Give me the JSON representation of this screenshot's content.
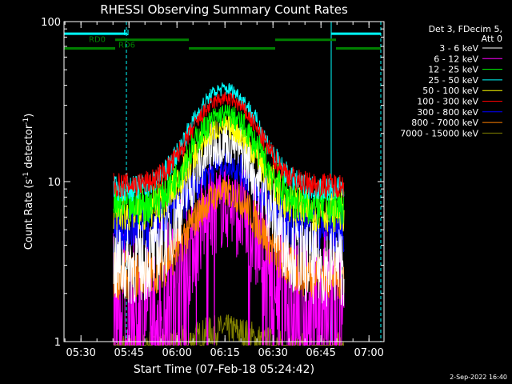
{
  "chart_data": {
    "type": "line",
    "title": "RHESSI Observing Summary Count Rates",
    "xlabel": "Start Time (07-Feb-18 05:24:42)",
    "ylabel_main": "Count Rate (s",
    "ylabel_sup1": "-1",
    "ylabel_mid": " detector",
    "ylabel_sup2": "-1",
    "ylabel_end": ")",
    "y_scale": "log",
    "ylim": [
      1,
      100
    ],
    "xlim_minutes": [
      0,
      100
    ],
    "x_ticks": [
      {
        "label": "05:30",
        "minute": 5.3
      },
      {
        "label": "05:45",
        "minute": 20.3
      },
      {
        "label": "06:00",
        "minute": 35.3
      },
      {
        "label": "06:15",
        "minute": 50.3
      },
      {
        "label": "06:30",
        "minute": 65.3
      },
      {
        "label": "06:45",
        "minute": 80.3
      },
      {
        "label": "07:00",
        "minute": 95.3
      }
    ],
    "y_ticks": [
      {
        "label": "1",
        "value": 1
      },
      {
        "label": "10",
        "value": 10
      },
      {
        "label": "100",
        "value": 100
      }
    ],
    "legend_header": [
      "Det 3, FDecim 5,",
      "Att 0"
    ],
    "legend_placement": "right-outside",
    "series": [
      {
        "name": "3 - 6 keV",
        "color": "#ffffff",
        "base": 3.0,
        "peak": 18,
        "noise": 0.5
      },
      {
        "name": "6 - 12 keV",
        "color": "#ff00ff",
        "base": 1.8,
        "peak": 7,
        "noise": 0.9
      },
      {
        "name": "12 - 25 keV",
        "color": "#00ff00",
        "base": 7.0,
        "peak": 26,
        "noise": 0.25
      },
      {
        "name": "25 - 50 keV",
        "color": "#00ffff",
        "base": 9.0,
        "peak": 38,
        "noise": 0.15
      },
      {
        "name": "50 - 100 keV",
        "color": "#ffff00",
        "base": 6.5,
        "peak": 22,
        "noise": 0.25
      },
      {
        "name": "100 - 300 keV",
        "color": "#ff0000",
        "base": 9.5,
        "peak": 33,
        "noise": 0.15
      },
      {
        "name": "300 - 800 keV",
        "color": "#0000ff",
        "base": 5.0,
        "peak": 13,
        "noise": 0.3
      },
      {
        "name": "800 - 7000 keV",
        "color": "#ff8000",
        "base": 2.6,
        "peak": 8.5,
        "noise": 0.3
      },
      {
        "name": "7000 - 15000 keV",
        "color": "#808000",
        "base": 0.8,
        "peak": 1.2,
        "noise": 0.3
      }
    ],
    "data_window_minutes": [
      15.5,
      87.5
    ],
    "peak_minute": 50.3,
    "peak_width_minutes": 12,
    "markers": {
      "cyan_solid_minutes": [
        0,
        83.5
      ],
      "cyan_dashed_minutes": [
        19.5,
        99
      ],
      "cyan_bar": {
        "label": "N",
        "segments": [
          [
            0,
            19.5
          ],
          [
            83.5,
            99
          ]
        ],
        "y": 84
      },
      "green_bar_label_rd0": "RD0",
      "green_bar_label_rd6": "RD6",
      "green_bar_rd0_segments": [
        [
          16,
          39
        ],
        [
          66,
          85
        ]
      ],
      "green_bar_rd0_y": 77,
      "green_bar_rd6_segments": [
        [
          0,
          16
        ],
        [
          39,
          66
        ],
        [
          85,
          99
        ]
      ],
      "green_bar_rd6_y": 68
    },
    "grid": false,
    "colors": {
      "background": "#000000",
      "axis": "#ffffff",
      "cyan": "#00ffff",
      "green": "#008000"
    }
  },
  "timestamp": "2-Sep-2022 16:40"
}
